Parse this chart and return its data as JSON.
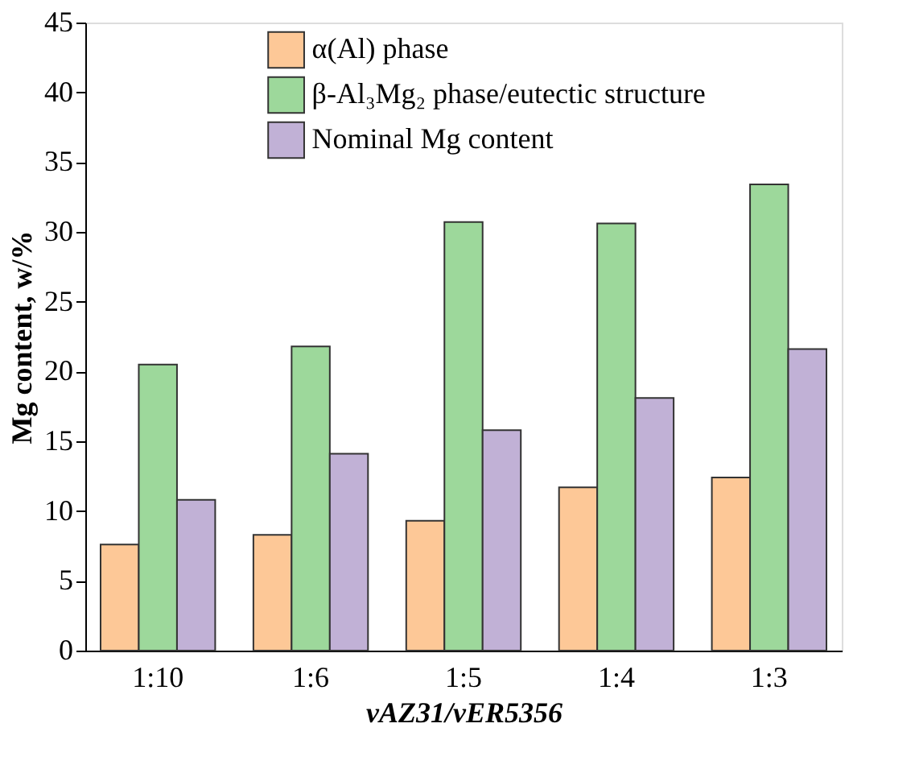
{
  "chart_data": {
    "type": "bar",
    "categories": [
      "1:10",
      "1:6",
      "1:5",
      "1:4",
      "1:3"
    ],
    "series": [
      {
        "name": "α(Al) phase",
        "color": "#fdc897",
        "values": [
          7.6,
          8.3,
          9.3,
          11.7,
          12.4
        ]
      },
      {
        "name": "β-Al₃Mg₂ phase/eutectic structure",
        "color": "#9dd89b",
        "values": [
          20.5,
          21.8,
          30.7,
          30.6,
          33.4
        ]
      },
      {
        "name": "Nominal Mg content",
        "color": "#c1b1d6",
        "values": [
          10.8,
          14.1,
          15.8,
          18.1,
          21.6
        ]
      }
    ],
    "xlabel": "vAZ31/vER5356",
    "ylabel": "Mg content, w/%",
    "ylim": [
      0,
      45
    ],
    "yticks": [
      0,
      5,
      10,
      15,
      20,
      25,
      30,
      35,
      40,
      45
    ],
    "grid": false,
    "legend": "top"
  }
}
